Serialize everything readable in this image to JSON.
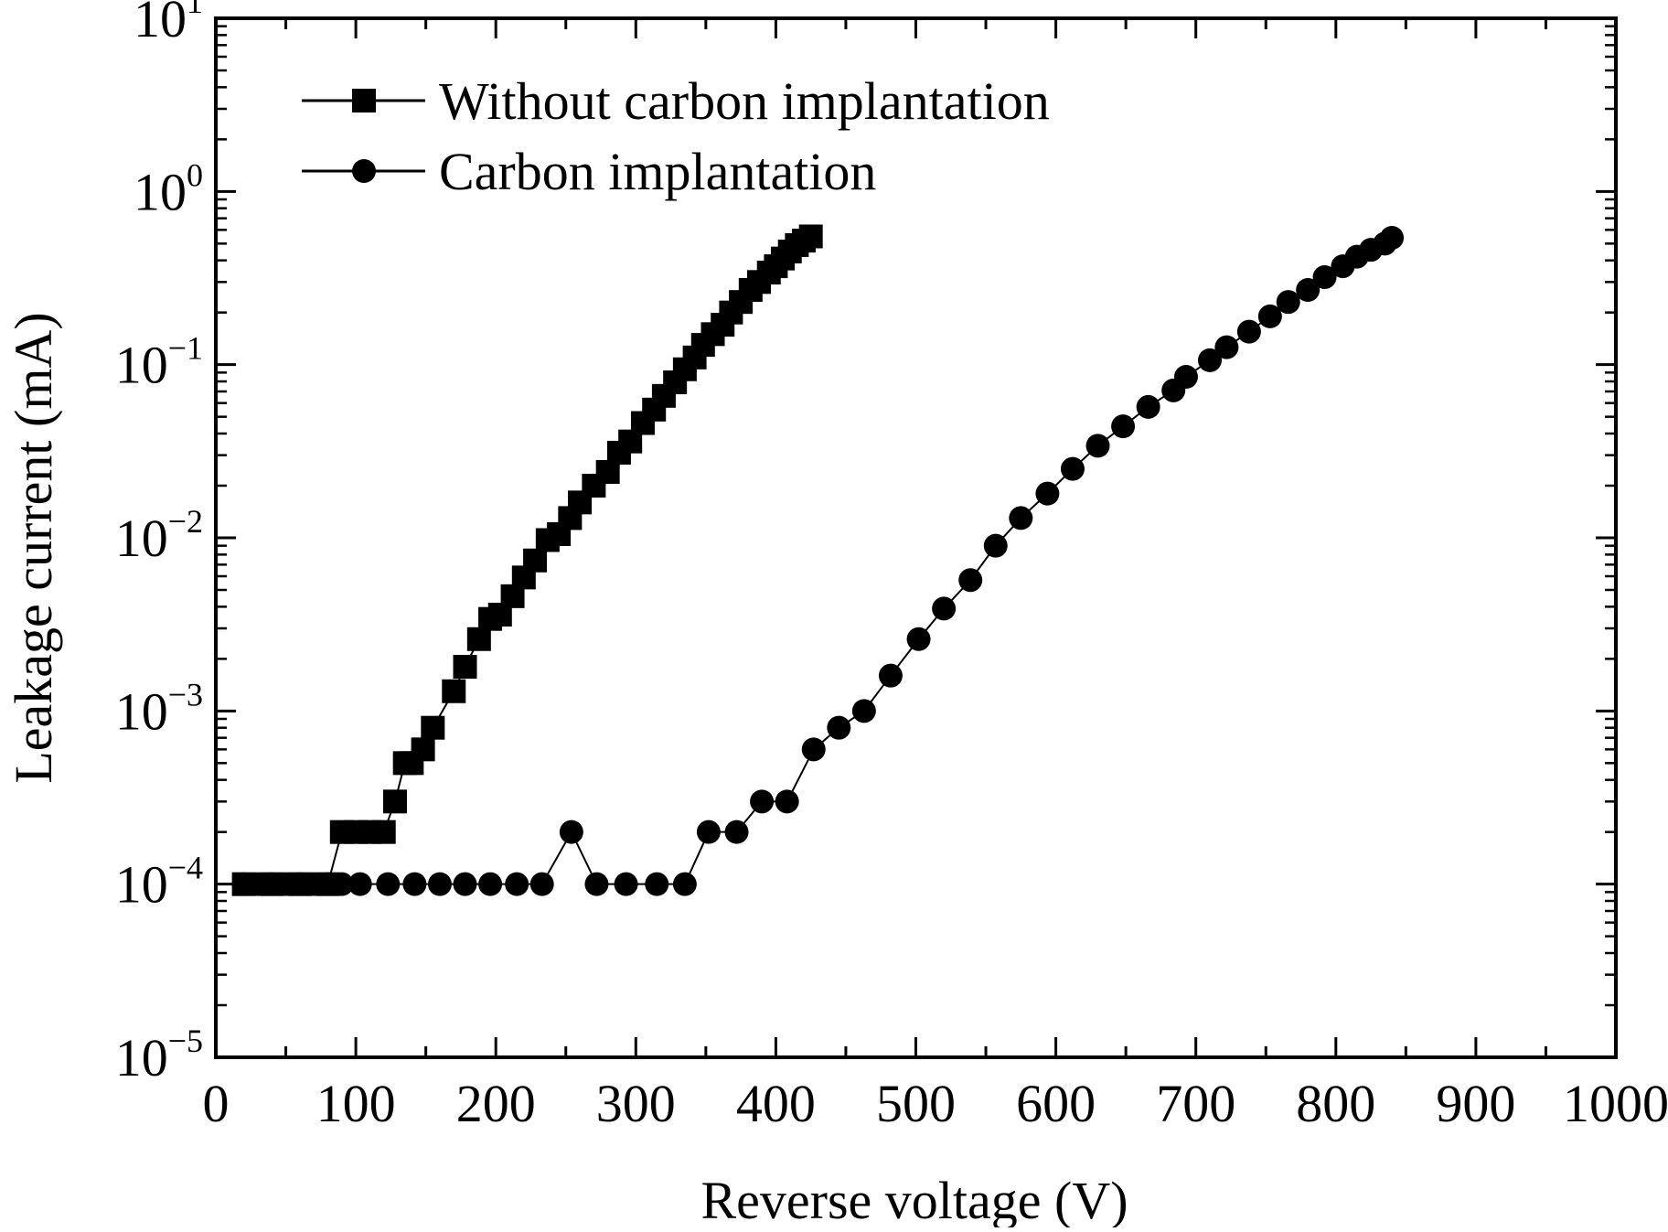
{
  "chart_data": {
    "type": "scatter",
    "title": "",
    "xlabel": "Reverse voltage (V)",
    "ylabel": "Leakage current (mA)",
    "xlim": [
      0,
      1000
    ],
    "ylim": [
      1e-05,
      10
    ],
    "yscale": "log",
    "grid": false,
    "legend_position": "top-left",
    "x_ticks": [
      0,
      100,
      200,
      300,
      400,
      500,
      600,
      700,
      800,
      900,
      1000
    ],
    "x_tick_labels": [
      "0",
      "100",
      "200",
      "300",
      "400",
      "500",
      "600",
      "700",
      "800",
      "900",
      "1000"
    ],
    "y_ticks": [
      {
        "base": "10",
        "exp": "1"
      },
      {
        "base": "10",
        "exp": "0"
      },
      {
        "base": "10",
        "exp": "−1"
      },
      {
        "base": "10",
        "exp": "−2"
      },
      {
        "base": "10",
        "exp": "−3"
      },
      {
        "base": "10",
        "exp": "−4"
      },
      {
        "base": "10",
        "exp": "−5"
      }
    ],
    "series": [
      {
        "name": "Without carbon implantation",
        "marker": "square",
        "color": "#000000",
        "points": [
          [
            20,
            0.0001
          ],
          [
            40,
            0.0001
          ],
          [
            60,
            0.0001
          ],
          [
            80,
            0.0001
          ],
          [
            90,
            0.0002
          ],
          [
            100,
            0.0002
          ],
          [
            110,
            0.0002
          ],
          [
            120,
            0.0002
          ],
          [
            128,
            0.0003
          ],
          [
            135,
            0.0005
          ],
          [
            140,
            0.0005
          ],
          [
            148,
            0.0006
          ],
          [
            155,
            0.0008
          ],
          [
            170,
            0.0013
          ],
          [
            178,
            0.0018
          ],
          [
            188,
            0.0026
          ],
          [
            196,
            0.0034
          ],
          [
            203,
            0.0036
          ],
          [
            212,
            0.0046
          ],
          [
            220,
            0.0059
          ],
          [
            228,
            0.0074
          ],
          [
            237,
            0.0097
          ],
          [
            245,
            0.0105
          ],
          [
            253,
            0.013
          ],
          [
            260,
            0.016
          ],
          [
            270,
            0.02
          ],
          [
            280,
            0.024
          ],
          [
            288,
            0.031
          ],
          [
            296,
            0.036
          ],
          [
            305,
            0.046
          ],
          [
            313,
            0.055
          ],
          [
            320,
            0.066
          ],
          [
            328,
            0.079
          ],
          [
            335,
            0.094
          ],
          [
            342,
            0.11
          ],
          [
            348,
            0.13
          ],
          [
            355,
            0.15
          ],
          [
            362,
            0.17
          ],
          [
            368,
            0.2
          ],
          [
            375,
            0.23
          ],
          [
            382,
            0.27
          ],
          [
            388,
            0.3
          ],
          [
            395,
            0.34
          ],
          [
            400,
            0.37
          ],
          [
            405,
            0.41
          ],
          [
            410,
            0.45
          ],
          [
            415,
            0.49
          ],
          [
            420,
            0.52
          ],
          [
            425,
            0.55
          ]
        ]
      },
      {
        "name": "Carbon implantation",
        "marker": "circle",
        "color": "#000000",
        "points": [
          [
            20,
            0.0001
          ],
          [
            30,
            0.0001
          ],
          [
            40,
            0.0001
          ],
          [
            50,
            0.0001
          ],
          [
            60,
            0.0001
          ],
          [
            70,
            0.0001
          ],
          [
            80,
            0.0001
          ],
          [
            90,
            0.0001
          ],
          [
            103,
            0.0001
          ],
          [
            123,
            0.0001
          ],
          [
            142,
            0.0001
          ],
          [
            160,
            0.0001
          ],
          [
            178,
            0.0001
          ],
          [
            196,
            0.0001
          ],
          [
            215,
            0.0001
          ],
          [
            233,
            0.0001
          ],
          [
            254,
            0.0002
          ],
          [
            272,
            0.0001
          ],
          [
            293,
            0.0001
          ],
          [
            315,
            0.0001
          ],
          [
            335,
            0.0001
          ],
          [
            352,
            0.0002
          ],
          [
            372,
            0.0002
          ],
          [
            390,
            0.0003
          ],
          [
            408,
            0.0003
          ],
          [
            427,
            0.0006
          ],
          [
            445,
            0.0008
          ],
          [
            463,
            0.001
          ],
          [
            482,
            0.0016
          ],
          [
            502,
            0.0026
          ],
          [
            520,
            0.0039
          ],
          [
            539,
            0.0057
          ],
          [
            557,
            0.009
          ],
          [
            575,
            0.013
          ],
          [
            594,
            0.018
          ],
          [
            612,
            0.025
          ],
          [
            630,
            0.034
          ],
          [
            648,
            0.044
          ],
          [
            666,
            0.057
          ],
          [
            684,
            0.071
          ],
          [
            693,
            0.085
          ],
          [
            710,
            0.106
          ],
          [
            722,
            0.126
          ],
          [
            738,
            0.155
          ],
          [
            753,
            0.19
          ],
          [
            766,
            0.23
          ],
          [
            780,
            0.27
          ],
          [
            792,
            0.32
          ],
          [
            805,
            0.37
          ],
          [
            815,
            0.42
          ],
          [
            825,
            0.46
          ],
          [
            835,
            0.5
          ],
          [
            840,
            0.54
          ]
        ]
      }
    ]
  }
}
